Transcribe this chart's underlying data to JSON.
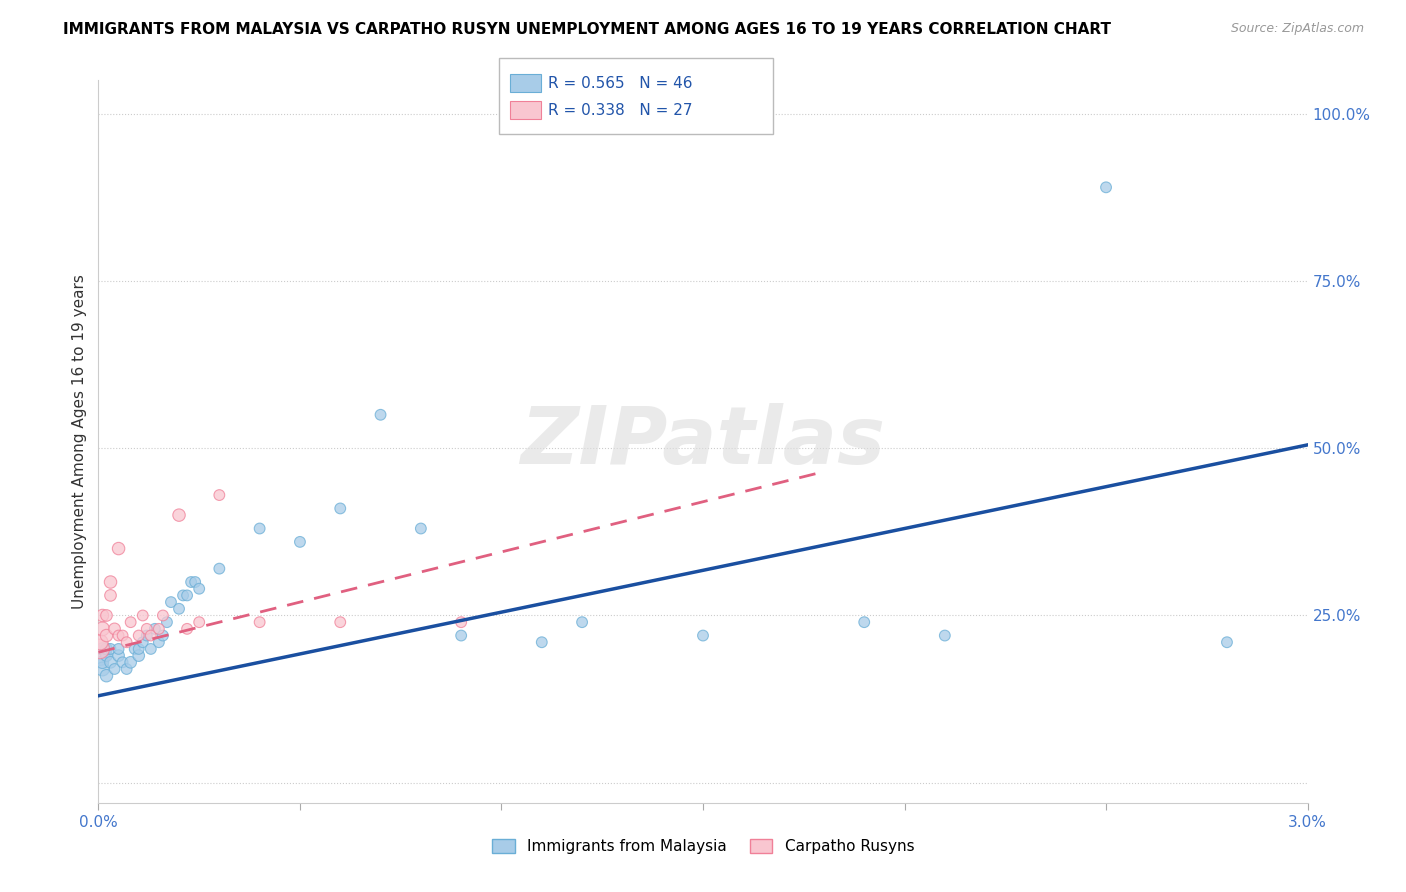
{
  "title": "IMMIGRANTS FROM MALAYSIA VS CARPATHO RUSYN UNEMPLOYMENT AMONG AGES 16 TO 19 YEARS CORRELATION CHART",
  "source": "Source: ZipAtlas.com",
  "ylabel": "Unemployment Among Ages 16 to 19 years",
  "xlim": [
    0.0,
    0.03
  ],
  "ylim": [
    -0.03,
    1.05
  ],
  "series1_color": "#a8cce8",
  "series1_edge": "#6aaed6",
  "series2_color": "#f9c6d0",
  "series2_edge": "#f08098",
  "series1_label": "Immigrants from Malaysia",
  "series2_label": "Carpatho Rusyns",
  "watermark": "ZIPatlas",
  "blue_x": [
    5e-05,
    0.0001,
    0.0001,
    0.0001,
    0.0002,
    0.0002,
    0.0002,
    0.0003,
    0.0003,
    0.0004,
    0.0005,
    0.0005,
    0.0006,
    0.0007,
    0.0008,
    0.0009,
    0.001,
    0.001,
    0.0011,
    0.0012,
    0.0013,
    0.0014,
    0.0015,
    0.0016,
    0.0017,
    0.0018,
    0.002,
    0.0021,
    0.0022,
    0.0023,
    0.0024,
    0.0025,
    0.003,
    0.004,
    0.005,
    0.006,
    0.007,
    0.008,
    0.009,
    0.011,
    0.012,
    0.015,
    0.019,
    0.021,
    0.025,
    0.028
  ],
  "blue_y": [
    0.19,
    0.17,
    0.18,
    0.2,
    0.16,
    0.19,
    0.2,
    0.18,
    0.2,
    0.17,
    0.19,
    0.2,
    0.18,
    0.17,
    0.18,
    0.2,
    0.19,
    0.2,
    0.21,
    0.22,
    0.2,
    0.23,
    0.21,
    0.22,
    0.24,
    0.27,
    0.26,
    0.28,
    0.28,
    0.3,
    0.3,
    0.29,
    0.32,
    0.38,
    0.36,
    0.41,
    0.55,
    0.38,
    0.22,
    0.21,
    0.24,
    0.22,
    0.24,
    0.22,
    0.89,
    0.21
  ],
  "blue_sizes": [
    200,
    100,
    80,
    80,
    80,
    70,
    70,
    70,
    60,
    60,
    70,
    60,
    60,
    60,
    70,
    60,
    70,
    60,
    60,
    60,
    60,
    60,
    60,
    60,
    60,
    60,
    60,
    60,
    60,
    60,
    60,
    60,
    60,
    60,
    60,
    60,
    60,
    60,
    60,
    60,
    60,
    60,
    60,
    60,
    60,
    60
  ],
  "pink_x": [
    3e-05,
    5e-05,
    0.0001,
    0.0001,
    0.0002,
    0.0002,
    0.0003,
    0.0003,
    0.0004,
    0.0005,
    0.0005,
    0.0006,
    0.0007,
    0.0008,
    0.001,
    0.0011,
    0.0012,
    0.0013,
    0.0015,
    0.0016,
    0.002,
    0.0022,
    0.0025,
    0.003,
    0.004,
    0.006,
    0.009
  ],
  "pink_y": [
    0.2,
    0.21,
    0.23,
    0.25,
    0.22,
    0.25,
    0.28,
    0.3,
    0.23,
    0.22,
    0.35,
    0.22,
    0.21,
    0.24,
    0.22,
    0.25,
    0.23,
    0.22,
    0.23,
    0.25,
    0.4,
    0.23,
    0.24,
    0.43,
    0.24,
    0.24,
    0.24
  ],
  "pink_sizes": [
    200,
    120,
    100,
    80,
    80,
    70,
    70,
    80,
    70,
    60,
    80,
    60,
    60,
    60,
    60,
    60,
    60,
    60,
    60,
    60,
    80,
    60,
    60,
    60,
    60,
    60,
    60
  ],
  "blue_line_color": "#1a4fa0",
  "pink_line_color": "#e06080",
  "blue_intercept": 0.13,
  "blue_slope": 12.5,
  "pink_intercept": 0.195,
  "pink_slope": 15.0
}
